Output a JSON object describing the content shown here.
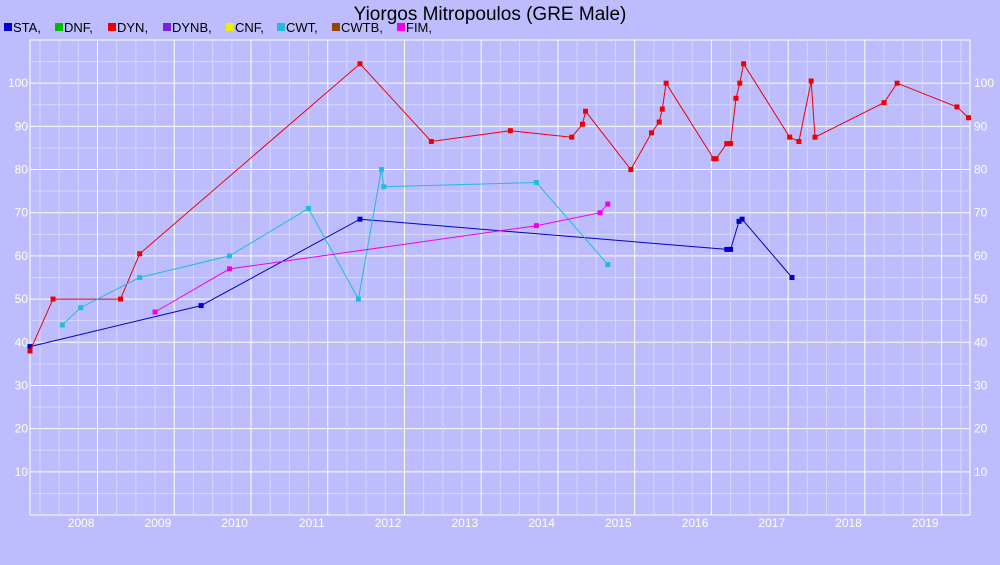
{
  "chart_data": {
    "type": "line",
    "title": "Yiorgos Mitropoulos (GRE Male)",
    "xlabel": "",
    "ylabel": "",
    "xlim": [
      2007.12,
      2019.37
    ],
    "ylim": [
      0,
      110
    ],
    "y_ticks": [
      10,
      20,
      30,
      40,
      50,
      60,
      70,
      80,
      90,
      100
    ],
    "x_ticks": [
      2008,
      2009,
      2010,
      2011,
      2012,
      2013,
      2014,
      2015,
      2016,
      2017,
      2018,
      2019
    ],
    "grid": true,
    "legend_position": "top-left",
    "legend": [
      {
        "label": "STA,",
        "color": "#0000cc"
      },
      {
        "label": "DNF,",
        "color": "#00bb00"
      },
      {
        "label": "DYN,",
        "color": "#ee0000"
      },
      {
        "label": "DYNB,",
        "color": "#7722dd"
      },
      {
        "label": "CNF,",
        "color": "#eeee00"
      },
      {
        "label": "CWT,",
        "color": "#22bbdd"
      },
      {
        "label": "CWTB,",
        "color": "#994400"
      },
      {
        "label": "FIM,",
        "color": "#ee00ee"
      }
    ],
    "series": [
      {
        "name": "STA",
        "color": "#0000cc",
        "points": [
          [
            2007.12,
            39
          ],
          [
            2009.35,
            48.5
          ],
          [
            2011.42,
            68.5
          ],
          [
            2016.2,
            61.5
          ],
          [
            2016.25,
            61.5
          ],
          [
            2016.36,
            68
          ],
          [
            2016.4,
            68.5
          ],
          [
            2017.05,
            55
          ]
        ]
      },
      {
        "name": "DYN",
        "color": "#ee0000",
        "points": [
          [
            2007.12,
            38
          ],
          [
            2007.42,
            50
          ],
          [
            2008.3,
            50
          ],
          [
            2008.55,
            60.5
          ],
          [
            2011.42,
            104.5
          ],
          [
            2012.35,
            86.5
          ],
          [
            2013.38,
            89
          ],
          [
            2014.18,
            87.5
          ],
          [
            2014.32,
            90.5
          ],
          [
            2014.36,
            93.5
          ],
          [
            2014.95,
            80
          ],
          [
            2015.22,
            88.5
          ],
          [
            2015.32,
            91
          ],
          [
            2015.36,
            94
          ],
          [
            2015.41,
            100
          ],
          [
            2016.03,
            82.5
          ],
          [
            2016.06,
            82.5
          ],
          [
            2016.2,
            86
          ],
          [
            2016.25,
            86
          ],
          [
            2016.32,
            96.5
          ],
          [
            2016.37,
            100
          ],
          [
            2016.42,
            104.5
          ],
          [
            2017.02,
            87.5
          ],
          [
            2017.14,
            86.5
          ],
          [
            2017.3,
            100.5
          ],
          [
            2017.35,
            87.5
          ],
          [
            2018.25,
            95.5
          ],
          [
            2018.42,
            100
          ],
          [
            2019.2,
            94.5
          ],
          [
            2019.35,
            92
          ]
        ]
      },
      {
        "name": "CWT",
        "color": "#22bbdd",
        "points": [
          [
            2007.54,
            44
          ],
          [
            2007.78,
            48
          ],
          [
            2008.55,
            55
          ],
          [
            2009.72,
            60
          ],
          [
            2010.75,
            71
          ],
          [
            2011.4,
            50
          ],
          [
            2011.7,
            80
          ],
          [
            2011.73,
            76
          ],
          [
            2013.72,
            77
          ],
          [
            2014.65,
            58
          ]
        ]
      },
      {
        "name": "FIM",
        "color": "#ee00ee",
        "points": [
          [
            2008.75,
            47
          ],
          [
            2009.72,
            57
          ],
          [
            2013.72,
            67
          ],
          [
            2014.55,
            70
          ],
          [
            2014.65,
            72
          ]
        ]
      }
    ]
  }
}
